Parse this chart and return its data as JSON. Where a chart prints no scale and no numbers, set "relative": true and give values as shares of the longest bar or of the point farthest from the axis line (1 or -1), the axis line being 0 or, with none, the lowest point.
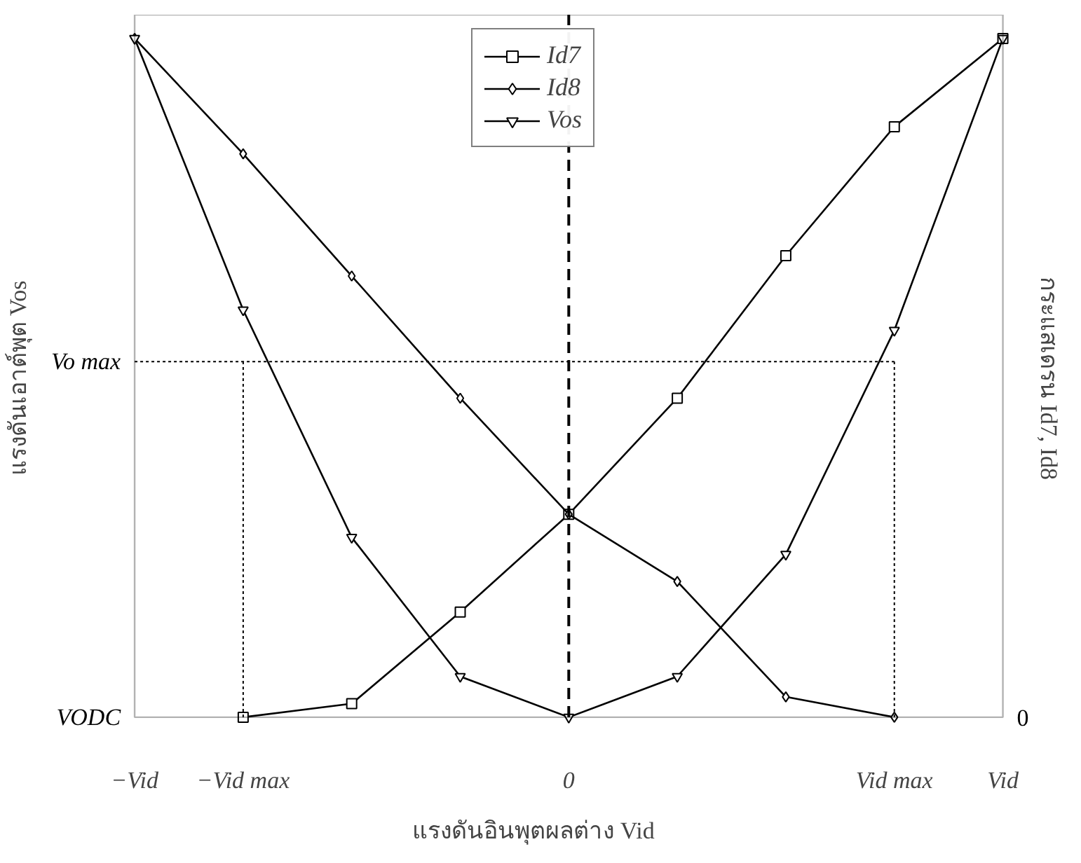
{
  "chart_data": {
    "type": "line",
    "relative": true,
    "xlabel": "แรงดันอินพุตผลต่าง Vid",
    "ylabel": "แรงดันเอาต์พุต Vos",
    "y2label": "กระแสเดรน Id7, Id8",
    "categories": [
      "−Vid",
      "−Vid max",
      null,
      null,
      "0",
      null,
      null,
      "Vid max",
      "Vid"
    ],
    "grid": false,
    "legend": "top",
    "line_style": "solid",
    "series": [
      {
        "name": "Id7",
        "color": "#000000",
        "marker": "square",
        "values": [
          null,
          0,
          0.02,
          0.155,
          0.299,
          0.47,
          0.68,
          0.87,
          1
        ]
      },
      {
        "name": "Id8",
        "color": "#000000",
        "marker": "diamond",
        "values": [
          1,
          0.83,
          0.65,
          0.47,
          0.299,
          0.2,
          0.03,
          0,
          null
        ]
      },
      {
        "name": "Vos",
        "color": "#000000",
        "marker": "triangle",
        "values": [
          1,
          0.6,
          0.265,
          0.06,
          0,
          0.06,
          0.24,
          0.57,
          1
        ]
      }
    ],
    "annotations": [
      "VODC",
      "0"
    ],
    "ref_lines": [
      {
        "axis": "x",
        "value": "0",
        "label": null,
        "color": "#000000",
        "line_style": "dashed"
      },
      {
        "axis": "x",
        "value": "−Vid max",
        "label": null,
        "color": "#000000",
        "line_style": "dotted"
      },
      {
        "axis": "x",
        "value": "Vid max",
        "label": null,
        "color": "#000000",
        "line_style": "dotted"
      },
      {
        "axis": "y",
        "value": 0.524,
        "label": "Vo max",
        "color": "#000000",
        "line_style": "dotted"
      }
    ]
  }
}
